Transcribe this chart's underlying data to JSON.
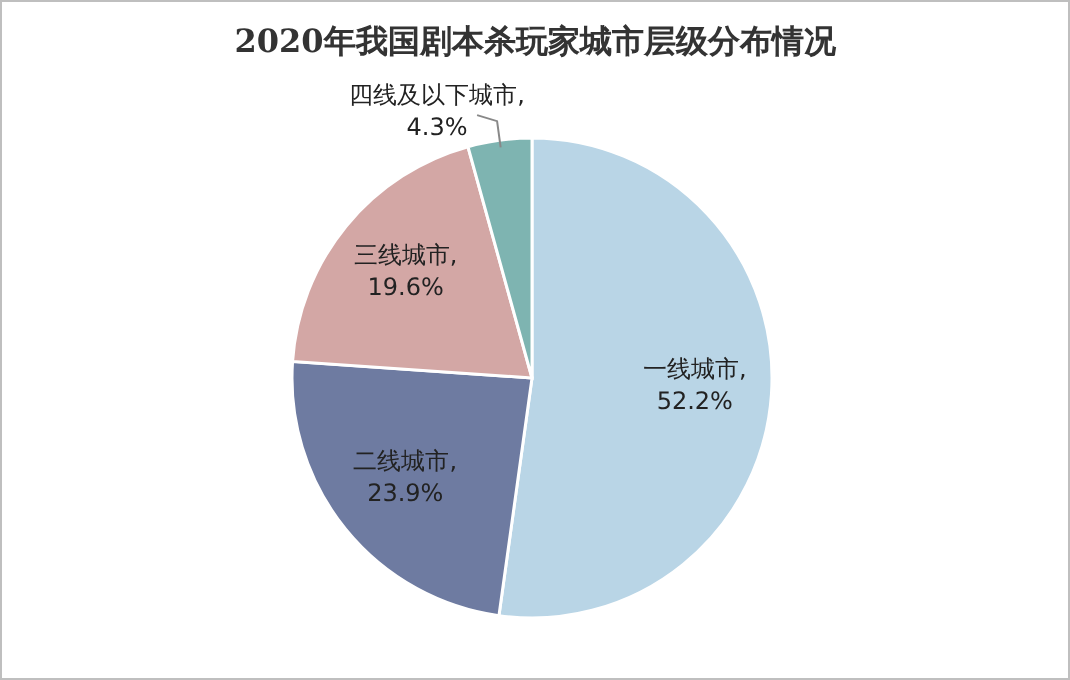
{
  "chart_data": {
    "type": "pie",
    "title": "2020年我国剧本杀玩家城市层级分布情况",
    "categories": [
      "一线城市",
      "二线城市",
      "三线城市",
      "四线及以下城市"
    ],
    "values": [
      52.2,
      23.9,
      19.6,
      4.3
    ],
    "value_labels": [
      ",\n52.2%",
      ",\n23.9%",
      ",\n19.6%",
      ",\n4.3%"
    ],
    "colors": [
      "#b9d5e6",
      "#6e7ba1",
      "#d3a7a5",
      "#7eb4b1"
    ]
  }
}
